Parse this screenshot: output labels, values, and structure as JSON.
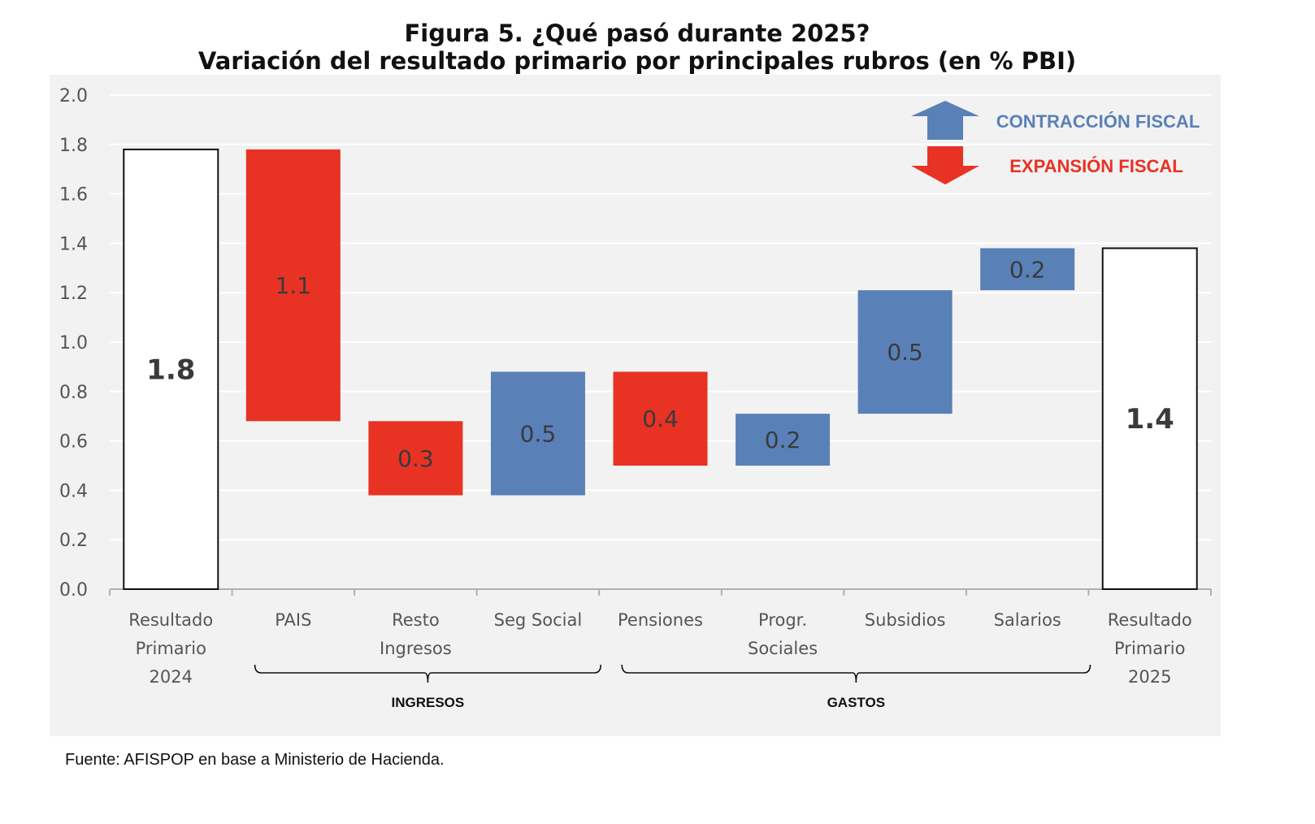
{
  "chart_data": {
    "type": "bar",
    "subtype": "waterfall",
    "title": "Figura 5. ¿Qué pasó durante 2025?",
    "subtitle": "Variación del resultado primario por principales rubros (en % PBI)",
    "xlabel": "",
    "ylabel": "",
    "ylim": [
      0.0,
      2.0
    ],
    "yticks": [
      "0.0",
      "0.2",
      "0.4",
      "0.6",
      "0.8",
      "1.0",
      "1.2",
      "1.4",
      "1.6",
      "1.8",
      "2.0"
    ],
    "grid": true,
    "categories": [
      [
        "Resultado",
        "Primario",
        "2024"
      ],
      [
        "PAIS"
      ],
      [
        "Resto",
        "Ingresos"
      ],
      [
        "Seg Social"
      ],
      [
        "Pensiones"
      ],
      [
        "Progr.",
        "Sociales"
      ],
      [
        "Subsidios"
      ],
      [
        "Salarios"
      ],
      [
        "Resultado",
        "Primario",
        "2025"
      ]
    ],
    "bars": [
      {
        "kind": "total",
        "base": 0.0,
        "top": 1.78,
        "label": "1.8"
      },
      {
        "kind": "expansion",
        "base": 0.68,
        "top": 1.78,
        "label": "1.1"
      },
      {
        "kind": "expansion",
        "base": 0.38,
        "top": 0.68,
        "label": "0.3"
      },
      {
        "kind": "contraction",
        "base": 0.38,
        "top": 0.88,
        "label": "0.5"
      },
      {
        "kind": "expansion",
        "base": 0.5,
        "top": 0.88,
        "label": "0.4"
      },
      {
        "kind": "contraction",
        "base": 0.5,
        "top": 0.71,
        "label": "0.2"
      },
      {
        "kind": "contraction",
        "base": 0.71,
        "top": 1.21,
        "label": "0.5"
      },
      {
        "kind": "contraction",
        "base": 1.21,
        "top": 1.38,
        "label": "0.2"
      },
      {
        "kind": "total",
        "base": 0.0,
        "top": 1.38,
        "label": "1.4"
      }
    ],
    "groups": [
      {
        "label": "INGRESOS",
        "from": 1,
        "to": 3
      },
      {
        "label": "GASTOS",
        "from": 4,
        "to": 7
      }
    ],
    "legend": {
      "placement": "top-right",
      "items": [
        {
          "label": "CONTRACCIÓN FISCAL",
          "kind": "contraction",
          "icon": "arrow-up-icon"
        },
        {
          "label": "EXPANSIÓN FISCAL",
          "kind": "expansion",
          "icon": "arrow-down-icon"
        }
      ]
    },
    "colors": {
      "expansion": "#e83224",
      "contraction": "#5a80b8",
      "total": "#ffffff",
      "total_stroke": "#111111",
      "plot_bg": "#f2f2f2",
      "grid": "#ffffff",
      "tick_text": "#555555",
      "value_text": "#3a3a3a"
    }
  },
  "source": "Fuente: AFISPOP en base a Ministerio de Hacienda."
}
